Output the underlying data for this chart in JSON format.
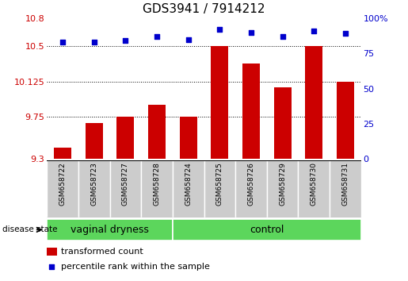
{
  "title": "GDS3941 / 7914212",
  "samples": [
    "GSM658722",
    "GSM658723",
    "GSM658727",
    "GSM658728",
    "GSM658724",
    "GSM658725",
    "GSM658726",
    "GSM658729",
    "GSM658730",
    "GSM658731"
  ],
  "bar_values": [
    9.42,
    9.68,
    9.75,
    9.88,
    9.75,
    10.5,
    10.32,
    10.06,
    10.5,
    10.125
  ],
  "dot_values": [
    83,
    83,
    84,
    87,
    85,
    92,
    90,
    87,
    91,
    89
  ],
  "groups": [
    {
      "label": "vaginal dryness",
      "start": 0,
      "end": 4
    },
    {
      "label": "control",
      "start": 4,
      "end": 10
    }
  ],
  "ylim_left": [
    9.3,
    10.8
  ],
  "ylim_right": [
    0,
    100
  ],
  "yticks_left": [
    9.3,
    9.75,
    10.125,
    10.5,
    10.8
  ],
  "yticks_right": [
    0,
    25,
    50,
    75,
    100
  ],
  "bar_color": "#cc0000",
  "dot_color": "#0000cc",
  "group_bg_color": "#5cd65c",
  "sample_bg_color": "#cccccc",
  "legend_bar_label": "transformed count",
  "legend_dot_label": "percentile rank within the sample",
  "disease_state_label": "disease state",
  "title_fontsize": 11,
  "tick_fontsize": 8,
  "sample_fontsize": 6.5,
  "group_fontsize": 9,
  "legend_fontsize": 8
}
